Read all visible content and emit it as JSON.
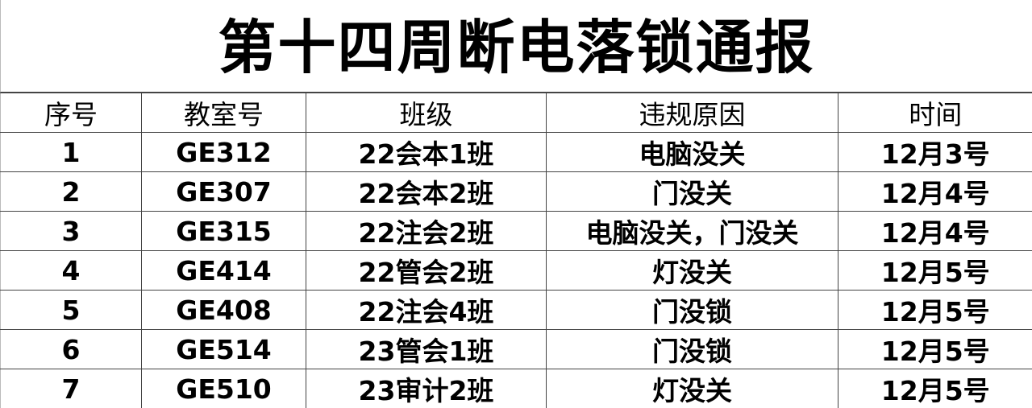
{
  "title": "第十四周断电落锁通报",
  "headers": [
    "序号",
    "教室号",
    "班级",
    "违规原因",
    "时间"
  ],
  "rows": [
    [
      "1",
      "GE312",
      "22会本1班",
      "电脑没关",
      "12月3号"
    ],
    [
      "2",
      "GE307",
      "22会本2班",
      "门没关",
      "12月4号"
    ],
    [
      "3",
      "GE315",
      "22注会2班",
      "电脑没关，门没关",
      "12月4号"
    ],
    [
      "4",
      "GE414",
      "22管会2班",
      "灯没关",
      "12月5号"
    ],
    [
      "5",
      "GE408",
      "22注会4班",
      "门没锁",
      "12月5号"
    ],
    [
      "6",
      "GE514",
      "23管会1班",
      "门没锁",
      "12月5号"
    ],
    [
      "7",
      "GE510",
      "23审计2班",
      "灯没关",
      "12月5号"
    ]
  ]
}
